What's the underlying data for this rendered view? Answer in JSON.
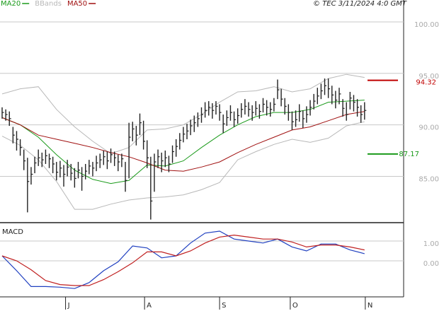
{
  "chart_data": [
    {
      "type": "ohlc",
      "caption": "© TEC 3/11/2024 4:0 GMT",
      "xlim": [
        0,
        110
      ],
      "ylim": [
        80.5,
        101.3
      ],
      "yticks": [
        {
          "value": 100,
          "label": "100.00"
        },
        {
          "value": 95,
          "label": "95.00"
        },
        {
          "value": 90,
          "label": "90.00"
        },
        {
          "value": 85,
          "label": "85.00"
        }
      ],
      "grid": true,
      "bar_color": "#222222",
      "x": [
        0,
        1,
        2,
        3,
        4,
        5,
        6,
        7,
        8,
        9,
        10,
        11,
        12,
        13,
        14,
        15,
        16,
        17,
        18,
        19,
        20,
        21,
        22,
        23,
        24,
        25,
        26,
        27,
        28,
        29,
        30,
        31,
        32,
        33,
        34,
        35,
        36,
        37,
        38,
        39,
        40,
        41,
        42,
        43,
        44,
        45,
        46,
        47,
        48,
        49,
        50,
        51,
        52,
        53,
        54,
        55,
        56,
        57,
        58,
        59,
        60,
        61,
        62,
        63,
        64,
        65,
        66,
        67,
        68,
        69,
        70,
        71,
        72,
        73,
        74,
        75,
        76,
        77,
        78,
        79,
        80,
        81,
        82,
        83,
        84,
        85,
        86,
        87,
        88,
        89,
        90,
        91,
        92,
        93,
        94,
        95,
        96,
        97,
        98,
        99,
        100
      ],
      "high": [
        91.7,
        91.5,
        91.3,
        89.8,
        89.4,
        88.6,
        87.6,
        86.8,
        85.9,
        86.9,
        87.6,
        87.3,
        87.6,
        87.2,
        86.9,
        86.4,
        86.5,
        86.1,
        86.6,
        86.2,
        85.8,
        86.4,
        85.9,
        86.2,
        86.6,
        86.4,
        87.0,
        87.2,
        87.5,
        87.4,
        87.7,
        87.4,
        87.1,
        87.2,
        86.4,
        90.2,
        90.3,
        89.9,
        91.1,
        90.4,
        88.5,
        86.9,
        87.2,
        87.6,
        87.3,
        87.5,
        87.0,
        88.0,
        88.6,
        89.2,
        89.8,
        90.1,
        90.5,
        90.9,
        91.2,
        91.7,
        92.2,
        92.3,
        92.1,
        92.3,
        92.0,
        91.0,
        91.4,
        91.9,
        91.3,
        91.6,
        92.1,
        92.5,
        92.2,
        91.9,
        92.3,
        92.0,
        92.6,
        92.4,
        92.2,
        92.6,
        94.4,
        93.5,
        92.6,
        92.0,
        91.3,
        91.4,
        92.0,
        91.4,
        91.8,
        92.4,
        93.0,
        93.6,
        94.0,
        94.5,
        94.5,
        93.8,
        93.3,
        93.6,
        92.5,
        92.2,
        93.2,
        92.9,
        92.5,
        91.9,
        92.2
      ],
      "low": [
        90.6,
        90.4,
        89.9,
        88.2,
        87.5,
        87.0,
        85.6,
        81.5,
        84.2,
        85.3,
        86.0,
        85.9,
        86.2,
        85.8,
        85.3,
        84.6,
        84.9,
        84.0,
        85.0,
        84.6,
        83.9,
        84.8,
        83.6,
        84.7,
        85.2,
        85.0,
        85.5,
        85.8,
        86.1,
        85.7,
        86.3,
        86.0,
        85.5,
        85.9,
        83.5,
        84.8,
        88.4,
        88.0,
        89.0,
        87.6,
        85.8,
        80.8,
        83.5,
        85.8,
        85.4,
        85.9,
        85.4,
        86.3,
        86.9,
        87.6,
        88.3,
        88.6,
        89.0,
        89.3,
        89.8,
        90.2,
        90.7,
        90.9,
        90.6,
        91.0,
        90.4,
        89.2,
        89.9,
        90.4,
        89.8,
        90.1,
        90.7,
        91.0,
        90.8,
        90.4,
        90.9,
        90.6,
        91.2,
        90.9,
        90.8,
        91.3,
        92.5,
        91.8,
        91.0,
        90.4,
        89.5,
        89.8,
        90.3,
        89.7,
        90.2,
        90.9,
        91.5,
        92.0,
        92.5,
        92.9,
        92.6,
        92.0,
        91.6,
        92.0,
        90.8,
        90.4,
        91.5,
        91.3,
        90.8,
        90.2,
        90.5
      ],
      "close": [
        91.2,
        91.0,
        90.6,
        89.0,
        88.6,
        87.8,
        86.5,
        84.5,
        85.2,
        86.3,
        86.8,
        86.6,
        87.0,
        86.7,
        86.2,
        85.4,
        85.8,
        85.2,
        85.9,
        85.3,
        84.8,
        85.6,
        85.0,
        85.5,
        86.0,
        85.8,
        86.3,
        86.6,
        86.9,
        86.5,
        87.1,
        86.8,
        86.4,
        86.7,
        84.6,
        88.8,
        89.6,
        89.0,
        90.2,
        88.4,
        86.8,
        82.6,
        86.4,
        86.9,
        86.5,
        86.8,
        86.2,
        87.4,
        87.9,
        88.5,
        89.1,
        89.4,
        89.9,
        90.2,
        90.6,
        91.0,
        91.4,
        91.7,
        91.4,
        91.8,
        91.2,
        90.1,
        90.7,
        91.2,
        90.5,
        90.9,
        91.5,
        91.8,
        91.5,
        91.2,
        91.6,
        91.3,
        92.0,
        91.7,
        91.5,
        92.0,
        93.4,
        92.5,
        91.8,
        91.2,
        90.3,
        90.5,
        91.3,
        90.6,
        91.0,
        91.7,
        92.3,
        92.8,
        93.3,
        93.8,
        93.5,
        92.9,
        92.4,
        93.0,
        91.6,
        91.0,
        92.6,
        92.2,
        91.7,
        91.0,
        91.4
      ],
      "series": [
        {
          "name": "MA20",
          "color": "#1a9a1a",
          "x": [
            0,
            5,
            10,
            15,
            20,
            25,
            30,
            35,
            40,
            45,
            50,
            55,
            60,
            65,
            70,
            75,
            80,
            85,
            90,
            95,
            100
          ],
          "values": [
            90.7,
            90.0,
            88.8,
            87.1,
            85.6,
            84.7,
            84.3,
            84.6,
            86.1,
            86.0,
            86.5,
            87.8,
            89.0,
            90.0,
            90.8,
            91.2,
            91.2,
            91.5,
            92.2,
            92.3,
            92.4
          ]
        },
        {
          "name": "BBands",
          "color": "#b8b8b8",
          "x": [
            0,
            5,
            10,
            15,
            20,
            25,
            30,
            35,
            40,
            45,
            50,
            55,
            60,
            65,
            70,
            75,
            80,
            85,
            90,
            95,
            100
          ],
          "upper": [
            93.0,
            93.5,
            93.7,
            91.5,
            89.8,
            88.4,
            87.2,
            87.8,
            89.5,
            89.6,
            90.0,
            91.0,
            92.2,
            93.2,
            93.3,
            93.7,
            93.2,
            93.5,
            94.5,
            94.9,
            94.6
          ],
          "lower": [
            88.9,
            88.0,
            86.6,
            84.5,
            81.8,
            81.8,
            82.3,
            82.7,
            82.9,
            83.0,
            83.2,
            83.7,
            84.4,
            86.6,
            87.4,
            88.1,
            88.6,
            88.3,
            88.7,
            89.9,
            90.3
          ]
        },
        {
          "name": "MA50",
          "color": "#a01010",
          "x": [
            0,
            5,
            10,
            15,
            20,
            25,
            30,
            35,
            40,
            45,
            50,
            55,
            60,
            65,
            70,
            75,
            80,
            85,
            90,
            95,
            100
          ],
          "values": [
            90.7,
            90.0,
            89.0,
            88.6,
            88.2,
            87.8,
            87.3,
            86.9,
            86.3,
            85.6,
            85.5,
            85.9,
            86.4,
            87.3,
            88.1,
            88.8,
            89.5,
            89.8,
            90.4,
            91.0,
            91.3
          ]
        }
      ],
      "markers": [
        {
          "value": 94.32,
          "color": "#c00000"
        },
        {
          "value": 87.17,
          "color": "#1a9a1a"
        }
      ]
    },
    {
      "type": "line",
      "title": "MACD",
      "xlim": [
        0,
        110
      ],
      "ylim": [
        -1.82,
        1.82
      ],
      "yticks": [
        {
          "value": 1,
          "label": "1.00"
        },
        {
          "value": 0,
          "label": "0.00"
        }
      ],
      "grid": true,
      "xticks": [
        {
          "value": 17.5,
          "label": "J"
        },
        {
          "value": 39.3,
          "label": "A"
        },
        {
          "value": 60,
          "label": "S"
        },
        {
          "value": 79.5,
          "label": "O"
        },
        {
          "value": 100.2,
          "label": "N"
        }
      ],
      "x": [
        0,
        4,
        8,
        12,
        16,
        20,
        24,
        28,
        32,
        36,
        40,
        44,
        48,
        52,
        56,
        60,
        64,
        68,
        72,
        76,
        80,
        84,
        88,
        92,
        96,
        100
      ],
      "series": [
        {
          "color": "#2040c0",
          "values": [
            0.25,
            -0.5,
            -1.3,
            -1.3,
            -1.33,
            -1.4,
            -1.1,
            -0.5,
            -0.05,
            0.75,
            0.65,
            0.15,
            0.25,
            0.9,
            1.4,
            1.5,
            1.1,
            1.0,
            0.9,
            1.1,
            0.7,
            0.5,
            0.85,
            0.85,
            0.55,
            0.36
          ]
        },
        {
          "color": "#c02020",
          "values": [
            0.25,
            0.0,
            -0.45,
            -1.0,
            -1.2,
            -1.25,
            -1.25,
            -0.95,
            -0.55,
            -0.1,
            0.45,
            0.45,
            0.25,
            0.5,
            0.9,
            1.2,
            1.3,
            1.2,
            1.1,
            1.1,
            0.95,
            0.7,
            0.8,
            0.8,
            0.7,
            0.55
          ]
        }
      ]
    }
  ]
}
